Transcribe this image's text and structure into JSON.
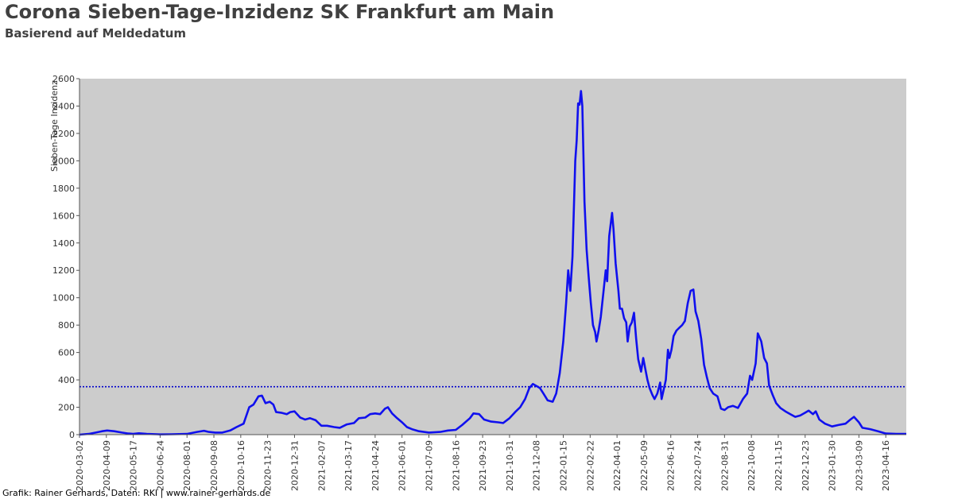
{
  "title": "Corona Sieben-Tage-Inzidenz SK Frankfurt am Main",
  "subtitle": "Basierend auf Meldedatum",
  "footer": "Grafik: Rainer Gerhards, Daten: RKI | www.rainer-gerhards.de",
  "colors": {
    "line": "#1010ee",
    "plot_bg": "#cccccc",
    "threshold": "#0000cc"
  },
  "chart_data": {
    "type": "line",
    "ylabel": "Sieben-Tage Inzidenz",
    "ylim": [
      0,
      2600
    ],
    "xlim": [
      "2020-03-02",
      "2023-05-15"
    ],
    "yticks": [
      0,
      200,
      400,
      600,
      800,
      1000,
      1200,
      1400,
      1600,
      1800,
      2000,
      2200,
      2400,
      2600
    ],
    "xticks": [
      "2020-03-02",
      "2020-04-09",
      "2020-05-17",
      "2020-06-24",
      "2020-08-01",
      "2020-09-08",
      "2020-10-16",
      "2020-11-23",
      "2020-12-31",
      "2021-02-07",
      "2021-03-17",
      "2021-04-24",
      "2021-06-01",
      "2021-07-09",
      "2021-08-16",
      "2021-09-23",
      "2021-10-31",
      "2021-12-08",
      "2022-01-15",
      "2022-02-22",
      "2022-04-01",
      "2022-05-09",
      "2022-06-16",
      "2022-07-24",
      "2022-08-31",
      "2022-10-08",
      "2022-11-15",
      "2022-12-23",
      "2023-01-30",
      "2023-03-09",
      "2023-04-16"
    ],
    "grid": false,
    "threshold": 350,
    "series": [
      {
        "points": [
          [
            "2020-03-02",
            0
          ],
          [
            "2020-03-15",
            5
          ],
          [
            "2020-03-25",
            15
          ],
          [
            "2020-04-03",
            25
          ],
          [
            "2020-04-10",
            30
          ],
          [
            "2020-04-20",
            25
          ],
          [
            "2020-05-01",
            15
          ],
          [
            "2020-05-10",
            8
          ],
          [
            "2020-05-17",
            5
          ],
          [
            "2020-05-25",
            10
          ],
          [
            "2020-06-05",
            5
          ],
          [
            "2020-06-20",
            3
          ],
          [
            "2020-06-24",
            2
          ],
          [
            "2020-07-10",
            3
          ],
          [
            "2020-08-01",
            5
          ],
          [
            "2020-08-15",
            20
          ],
          [
            "2020-08-25",
            28
          ],
          [
            "2020-09-01",
            20
          ],
          [
            "2020-09-10",
            15
          ],
          [
            "2020-09-20",
            15
          ],
          [
            "2020-10-01",
            30
          ],
          [
            "2020-10-10",
            55
          ],
          [
            "2020-10-20",
            80
          ],
          [
            "2020-10-28",
            200
          ],
          [
            "2020-11-03",
            220
          ],
          [
            "2020-11-10",
            280
          ],
          [
            "2020-11-15",
            285
          ],
          [
            "2020-11-20",
            230
          ],
          [
            "2020-11-26",
            240
          ],
          [
            "2020-12-01",
            220
          ],
          [
            "2020-12-05",
            165
          ],
          [
            "2020-12-12",
            160
          ],
          [
            "2020-12-20",
            150
          ],
          [
            "2020-12-25",
            165
          ],
          [
            "2020-12-31",
            170
          ],
          [
            "2021-01-08",
            125
          ],
          [
            "2021-01-15",
            110
          ],
          [
            "2021-01-22",
            120
          ],
          [
            "2021-01-30",
            105
          ],
          [
            "2021-02-07",
            65
          ],
          [
            "2021-02-15",
            65
          ],
          [
            "2021-02-25",
            55
          ],
          [
            "2021-03-05",
            50
          ],
          [
            "2021-03-15",
            75
          ],
          [
            "2021-03-25",
            85
          ],
          [
            "2021-04-01",
            120
          ],
          [
            "2021-04-10",
            125
          ],
          [
            "2021-04-17",
            150
          ],
          [
            "2021-04-24",
            155
          ],
          [
            "2021-05-01",
            150
          ],
          [
            "2021-05-08",
            190
          ],
          [
            "2021-05-12",
            200
          ],
          [
            "2021-05-18",
            155
          ],
          [
            "2021-05-25",
            120
          ],
          [
            "2021-06-01",
            90
          ],
          [
            "2021-06-08",
            55
          ],
          [
            "2021-06-15",
            40
          ],
          [
            "2021-06-25",
            25
          ],
          [
            "2021-07-09",
            15
          ],
          [
            "2021-07-25",
            20
          ],
          [
            "2021-08-05",
            30
          ],
          [
            "2021-08-16",
            35
          ],
          [
            "2021-08-25",
            70
          ],
          [
            "2021-09-05",
            120
          ],
          [
            "2021-09-10",
            155
          ],
          [
            "2021-09-18",
            150
          ],
          [
            "2021-09-25",
            110
          ],
          [
            "2021-10-05",
            95
          ],
          [
            "2021-10-15",
            90
          ],
          [
            "2021-10-22",
            85
          ],
          [
            "2021-10-31",
            120
          ],
          [
            "2021-11-08",
            165
          ],
          [
            "2021-11-15",
            200
          ],
          [
            "2021-11-22",
            260
          ],
          [
            "2021-11-28",
            340
          ],
          [
            "2021-12-03",
            370
          ],
          [
            "2021-12-08",
            355
          ],
          [
            "2021-12-13",
            340
          ],
          [
            "2021-12-18",
            300
          ],
          [
            "2021-12-24",
            250
          ],
          [
            "2021-12-31",
            240
          ],
          [
            "2022-01-05",
            300
          ],
          [
            "2022-01-10",
            450
          ],
          [
            "2022-01-15",
            680
          ],
          [
            "2022-01-19",
            960
          ],
          [
            "2022-01-22",
            1200
          ],
          [
            "2022-01-25",
            1050
          ],
          [
            "2022-01-28",
            1300
          ],
          [
            "2022-02-01",
            2000
          ],
          [
            "2022-02-03",
            2150
          ],
          [
            "2022-02-05",
            2420
          ],
          [
            "2022-02-07",
            2410
          ],
          [
            "2022-02-09",
            2510
          ],
          [
            "2022-02-11",
            2400
          ],
          [
            "2022-02-14",
            1700
          ],
          [
            "2022-02-17",
            1350
          ],
          [
            "2022-02-20",
            1150
          ],
          [
            "2022-02-23",
            960
          ],
          [
            "2022-02-26",
            800
          ],
          [
            "2022-03-01",
            750
          ],
          [
            "2022-03-03",
            680
          ],
          [
            "2022-03-06",
            760
          ],
          [
            "2022-03-09",
            860
          ],
          [
            "2022-03-13",
            1050
          ],
          [
            "2022-03-16",
            1200
          ],
          [
            "2022-03-18",
            1120
          ],
          [
            "2022-03-21",
            1450
          ],
          [
            "2022-03-25",
            1620
          ],
          [
            "2022-03-27",
            1500
          ],
          [
            "2022-03-30",
            1250
          ],
          [
            "2022-04-03",
            1050
          ],
          [
            "2022-04-05",
            920
          ],
          [
            "2022-04-08",
            920
          ],
          [
            "2022-04-11",
            850
          ],
          [
            "2022-04-14",
            820
          ],
          [
            "2022-04-16",
            680
          ],
          [
            "2022-04-19",
            790
          ],
          [
            "2022-04-22",
            820
          ],
          [
            "2022-04-25",
            890
          ],
          [
            "2022-04-28",
            700
          ],
          [
            "2022-05-01",
            550
          ],
          [
            "2022-05-05",
            460
          ],
          [
            "2022-05-08",
            560
          ],
          [
            "2022-05-11",
            480
          ],
          [
            "2022-05-14",
            400
          ],
          [
            "2022-05-17",
            340
          ],
          [
            "2022-05-21",
            290
          ],
          [
            "2022-05-24",
            260
          ],
          [
            "2022-05-28",
            300
          ],
          [
            "2022-06-01",
            380
          ],
          [
            "2022-06-03",
            260
          ],
          [
            "2022-06-06",
            330
          ],
          [
            "2022-06-09",
            400
          ],
          [
            "2022-06-12",
            620
          ],
          [
            "2022-06-14",
            560
          ],
          [
            "2022-06-17",
            620
          ],
          [
            "2022-06-20",
            720
          ],
          [
            "2022-06-24",
            760
          ],
          [
            "2022-06-28",
            780
          ],
          [
            "2022-07-02",
            800
          ],
          [
            "2022-07-06",
            830
          ],
          [
            "2022-07-10",
            960
          ],
          [
            "2022-07-14",
            1050
          ],
          [
            "2022-07-18",
            1060
          ],
          [
            "2022-07-21",
            900
          ],
          [
            "2022-07-25",
            830
          ],
          [
            "2022-07-29",
            700
          ],
          [
            "2022-08-02",
            510
          ],
          [
            "2022-08-06",
            420
          ],
          [
            "2022-08-10",
            340
          ],
          [
            "2022-08-15",
            300
          ],
          [
            "2022-08-21",
            280
          ],
          [
            "2022-08-26",
            190
          ],
          [
            "2022-08-31",
            180
          ],
          [
            "2022-09-05",
            200
          ],
          [
            "2022-09-12",
            210
          ],
          [
            "2022-09-19",
            195
          ],
          [
            "2022-09-26",
            260
          ],
          [
            "2022-10-02",
            300
          ],
          [
            "2022-10-06",
            430
          ],
          [
            "2022-10-09",
            400
          ],
          [
            "2022-10-14",
            520
          ],
          [
            "2022-10-17",
            740
          ],
          [
            "2022-10-22",
            680
          ],
          [
            "2022-10-26",
            560
          ],
          [
            "2022-10-30",
            520
          ],
          [
            "2022-11-02",
            360
          ],
          [
            "2022-11-07",
            290
          ],
          [
            "2022-11-12",
            230
          ],
          [
            "2022-11-18",
            195
          ],
          [
            "2022-11-25",
            170
          ],
          [
            "2022-12-02",
            150
          ],
          [
            "2022-12-09",
            130
          ],
          [
            "2022-12-16",
            140
          ],
          [
            "2022-12-23",
            160
          ],
          [
            "2022-12-28",
            175
          ],
          [
            "2023-01-03",
            150
          ],
          [
            "2023-01-07",
            170
          ],
          [
            "2023-01-12",
            110
          ],
          [
            "2023-01-20",
            80
          ],
          [
            "2023-01-30",
            60
          ],
          [
            "2023-02-08",
            70
          ],
          [
            "2023-02-18",
            80
          ],
          [
            "2023-02-25",
            110
          ],
          [
            "2023-03-02",
            130
          ],
          [
            "2023-03-09",
            90
          ],
          [
            "2023-03-14",
            50
          ],
          [
            "2023-03-25",
            40
          ],
          [
            "2023-04-05",
            25
          ],
          [
            "2023-04-16",
            8
          ],
          [
            "2023-05-01",
            5
          ],
          [
            "2023-05-15",
            5
          ]
        ]
      }
    ]
  }
}
